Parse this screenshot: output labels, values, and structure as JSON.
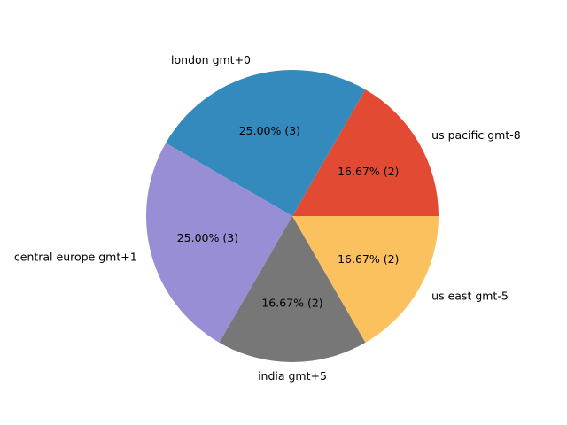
{
  "chart_data": {
    "type": "pie",
    "start_angle_deg": 0,
    "direction": "counterclockwise",
    "slices": [
      {
        "label": "us pacific gmt-8",
        "value": 2,
        "pct_text": "16.67%  (2)",
        "color": "#E24A33"
      },
      {
        "label": "london gmt+0",
        "value": 3,
        "pct_text": "25.00%  (3)",
        "color": "#348ABD"
      },
      {
        "label": "central europe gmt+1",
        "value": 3,
        "pct_text": "25.00%  (3)",
        "color": "#988ED5"
      },
      {
        "label": "india gmt+5",
        "value": 2,
        "pct_text": "16.67%  (2)",
        "color": "#777777"
      },
      {
        "label": "us east gmt-5",
        "value": 2,
        "pct_text": "16.67%  (2)",
        "color": "#FBC15E"
      }
    ]
  }
}
